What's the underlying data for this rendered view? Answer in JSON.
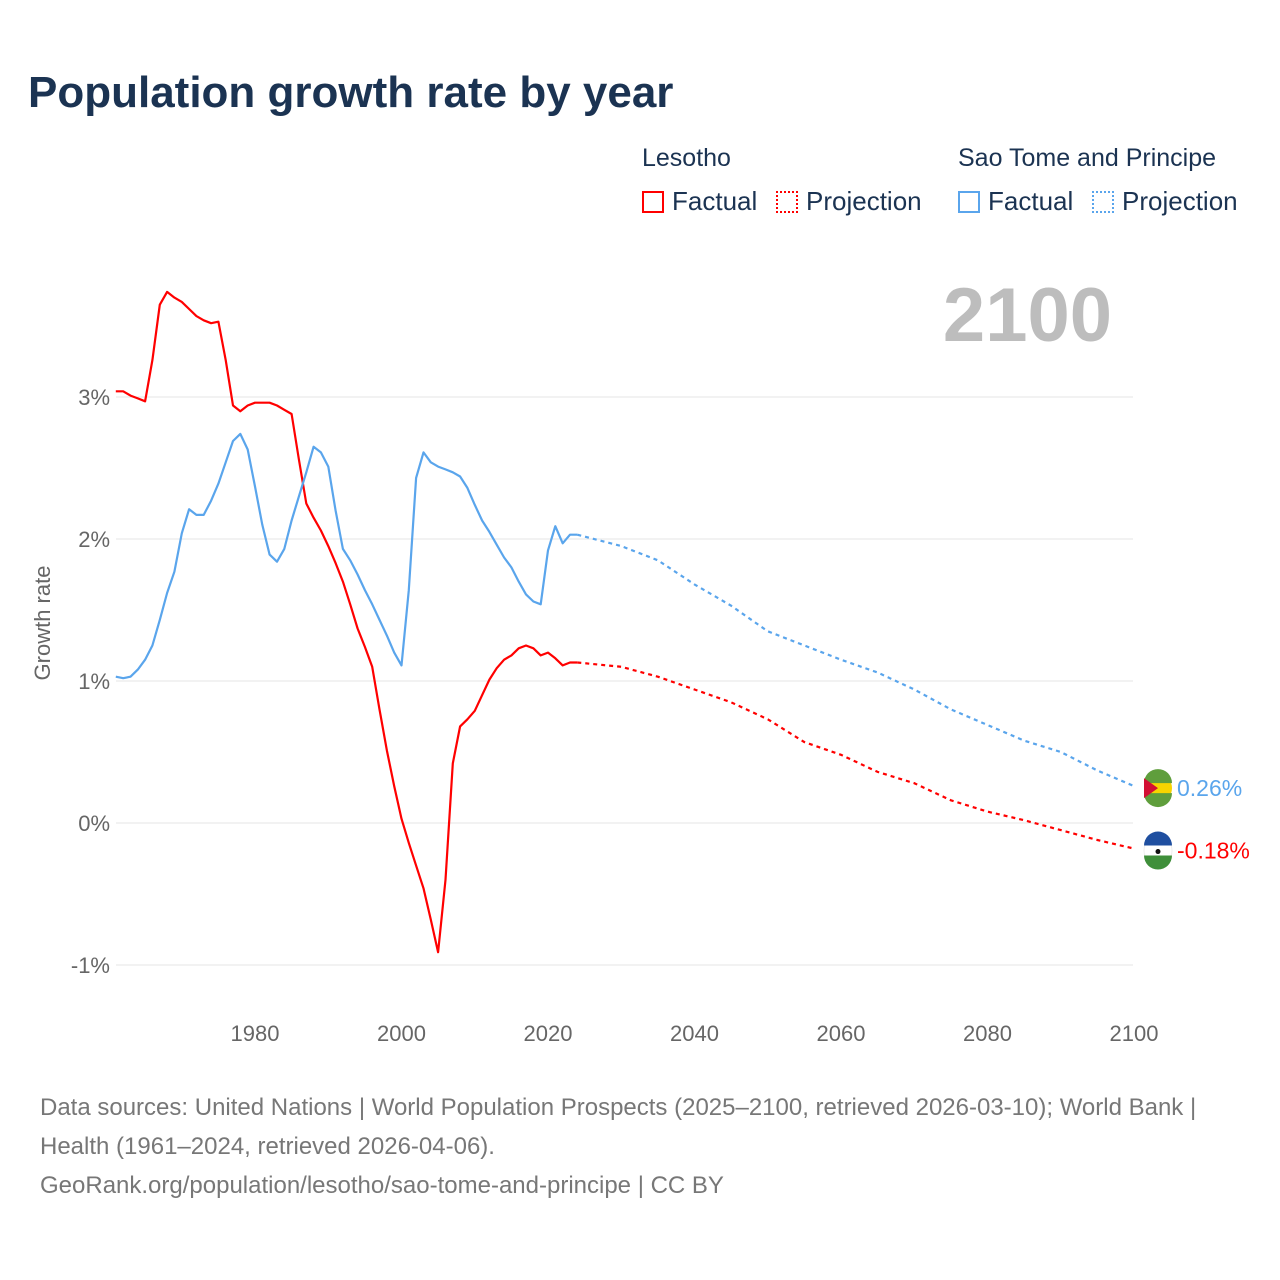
{
  "title": "Population growth rate by year",
  "legend": {
    "groups": [
      {
        "name": "Lesotho",
        "factual": "Factual",
        "projection": "Projection",
        "color": "#ff0000"
      },
      {
        "name": "Sao Tome and Principe",
        "factual": "Factual",
        "projection": "Projection",
        "color": "#5aa5ec"
      }
    ]
  },
  "current_year": "2100",
  "footer": {
    "sources": "Data sources: United Nations | World Population Prospects (2025–2100, retrieved 2026-03-10); World Bank | Health (1961–2024, retrieved 2026-04-06).",
    "link": "GeoRank.org/population/lesotho/sao-tome-and-principe | CC BY"
  },
  "chart_data": {
    "type": "line",
    "title": "Population growth rate by year",
    "xlabel": "",
    "ylabel": "Growth rate",
    "xlim": [
      1961,
      2100
    ],
    "ylim": [
      -1.3,
      3.9
    ],
    "x_ticks": [
      1980,
      2000,
      2020,
      2040,
      2060,
      2080,
      2100
    ],
    "x_tick_labels": [
      "1980",
      "2000",
      "2020",
      "2040",
      "2060",
      "2080",
      "2100"
    ],
    "y_ticks": [
      -1,
      0,
      1,
      2,
      3
    ],
    "y_tick_labels": [
      "-1%",
      "0%",
      "1%",
      "2%",
      "3%"
    ],
    "grid": true,
    "legend_position": "top-right",
    "series": [
      {
        "name": "Lesotho",
        "color": "#ff0000",
        "end_label": "-0.18%",
        "factual_start_year": 1961,
        "factual": [
          3.04,
          3.04,
          3.01,
          2.99,
          2.97,
          3.26,
          3.65,
          3.74,
          3.7,
          3.67,
          3.62,
          3.57,
          3.54,
          3.52,
          3.53,
          3.26,
          2.94,
          2.9,
          2.94,
          2.96,
          2.96,
          2.96,
          2.94,
          2.91,
          2.88,
          2.56,
          2.25,
          2.15,
          2.06,
          1.95,
          1.83,
          1.7,
          1.54,
          1.37,
          1.24,
          1.1,
          0.8,
          0.51,
          0.26,
          0.03,
          -0.14,
          -0.3,
          -0.46,
          -0.68,
          -0.91,
          -0.4,
          0.42,
          0.68,
          0.73,
          0.79,
          0.9,
          1.01,
          1.09,
          1.15,
          1.18,
          1.23,
          1.25,
          1.23,
          1.18,
          1.2,
          1.16,
          1.11,
          1.13,
          1.13
        ],
        "projection_years": [
          2024,
          2030,
          2035,
          2040,
          2045,
          2050,
          2055,
          2060,
          2065,
          2070,
          2075,
          2080,
          2085,
          2090,
          2095,
          2100
        ],
        "projection": [
          1.13,
          1.1,
          1.03,
          0.94,
          0.85,
          0.73,
          0.57,
          0.48,
          0.36,
          0.28,
          0.16,
          0.08,
          0.02,
          -0.05,
          -0.12,
          -0.18
        ]
      },
      {
        "name": "Sao Tome and Principe",
        "color": "#5aa5ec",
        "end_label": "0.26%",
        "factual_start_year": 1961,
        "factual": [
          1.03,
          1.02,
          1.03,
          1.08,
          1.15,
          1.25,
          1.43,
          1.62,
          1.77,
          2.04,
          2.21,
          2.17,
          2.17,
          2.27,
          2.39,
          2.54,
          2.69,
          2.74,
          2.63,
          2.37,
          2.1,
          1.89,
          1.84,
          1.93,
          2.13,
          2.3,
          2.47,
          2.65,
          2.61,
          2.51,
          2.2,
          1.93,
          1.85,
          1.75,
          1.64,
          1.54,
          1.43,
          1.32,
          1.2,
          1.11,
          1.64,
          2.43,
          2.61,
          2.54,
          2.51,
          2.49,
          2.47,
          2.44,
          2.36,
          2.24,
          2.13,
          2.05,
          1.96,
          1.87,
          1.8,
          1.7,
          1.61,
          1.56,
          1.54,
          1.92,
          2.09,
          1.97,
          2.03,
          2.03
        ],
        "projection_years": [
          2024,
          2030,
          2035,
          2040,
          2045,
          2050,
          2055,
          2060,
          2065,
          2070,
          2075,
          2080,
          2085,
          2090,
          2095,
          2100
        ],
        "projection": [
          2.03,
          1.95,
          1.85,
          1.68,
          1.53,
          1.35,
          1.25,
          1.15,
          1.06,
          0.94,
          0.8,
          0.69,
          0.58,
          0.5,
          0.37,
          0.26
        ]
      }
    ]
  }
}
